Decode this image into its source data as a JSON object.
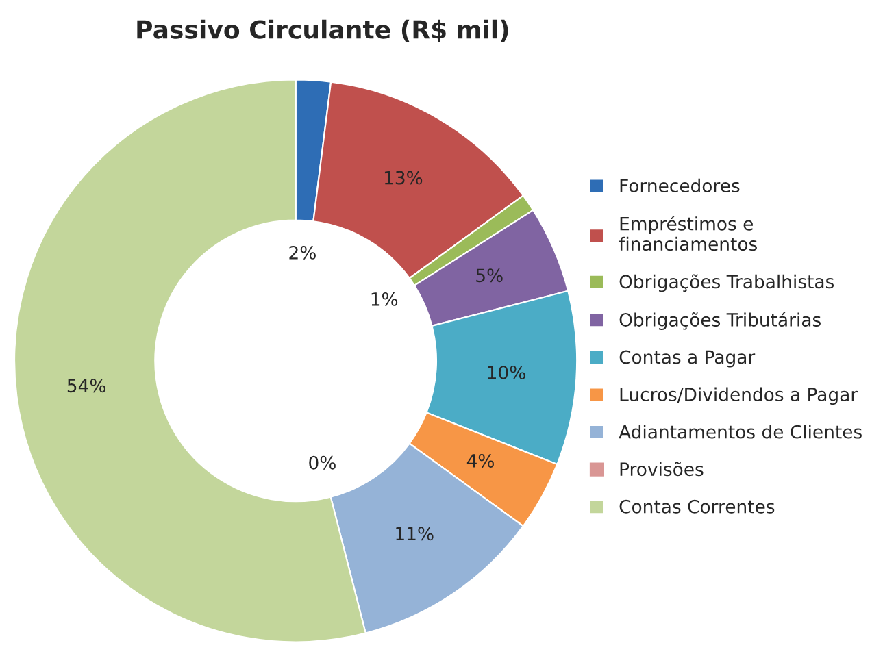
{
  "chart_data": {
    "type": "donut",
    "title": "Passivo Circulante (R$ mil)",
    "categories": [
      "Fornecedores",
      "Empréstimos e financiamentos",
      "Obrigações Trabalhistas",
      "Obrigações Tributárias",
      "Contas a Pagar",
      "Lucros/Dividendos a Pagar",
      "Adiantamentos de Clientes",
      "Provisões",
      "Contas Correntes"
    ],
    "values": [
      2,
      13,
      1,
      5,
      10,
      4,
      11,
      0,
      54
    ],
    "value_labels": [
      "2%",
      "13%",
      "1%",
      "5%",
      "10%",
      "4%",
      "11%",
      "0%",
      "54%"
    ],
    "colors": [
      "#2e6db5",
      "#c0504d",
      "#9bbb59",
      "#8064a2",
      "#4bacc6",
      "#f79646",
      "#95b3d7",
      "#d99694",
      "#c3d69b"
    ],
    "legend": "right"
  }
}
